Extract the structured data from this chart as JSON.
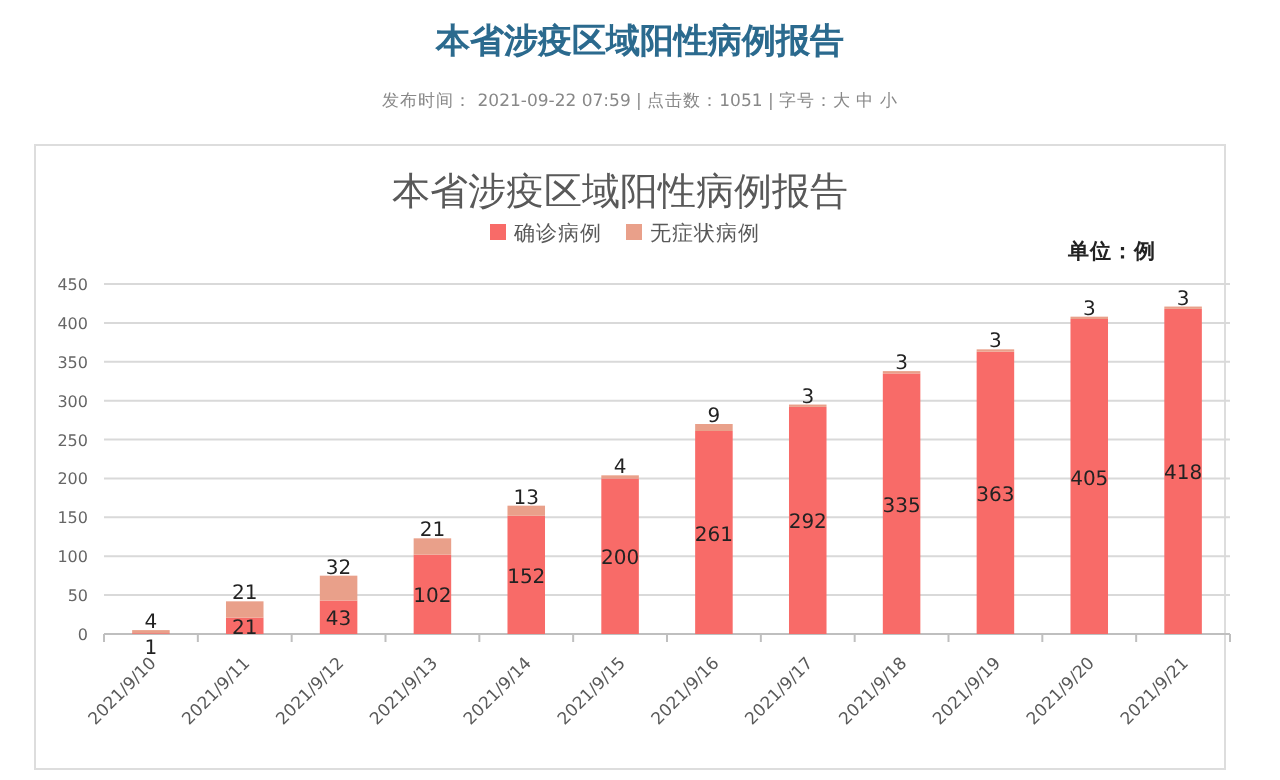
{
  "chart_data": {
    "type": "bar",
    "stacked": true,
    "title": "本省涉疫区域阳性病例报告",
    "annotations": [
      "本省涉疫区域阳性病例报告",
      "发布时间： 2021-09-22 07:59 | 点击数：1051 | 字号：大 中 小",
      "单位：例"
    ],
    "categories": [
      "2021/9/10",
      "2021/9/11",
      "2021/9/12",
      "2021/9/13",
      "2021/9/14",
      "2021/9/15",
      "2021/9/16",
      "2021/9/17",
      "2021/9/18",
      "2021/9/19",
      "2021/9/20",
      "2021/9/21"
    ],
    "series": [
      {
        "name": "确诊病例",
        "color": "#f86b68",
        "values": [
          1,
          21,
          43,
          102,
          152,
          200,
          261,
          292,
          335,
          363,
          405,
          418
        ]
      },
      {
        "name": "无症状病例",
        "color": "#e9a08a",
        "values": [
          4,
          21,
          32,
          21,
          13,
          4,
          9,
          3,
          3,
          3,
          3,
          3
        ]
      }
    ],
    "ylim": [
      0,
      450
    ],
    "yticks": [
      0,
      50,
      100,
      150,
      200,
      250,
      300,
      350,
      400,
      450
    ],
    "grid": "y",
    "legend": "top",
    "data_labels": true
  }
}
